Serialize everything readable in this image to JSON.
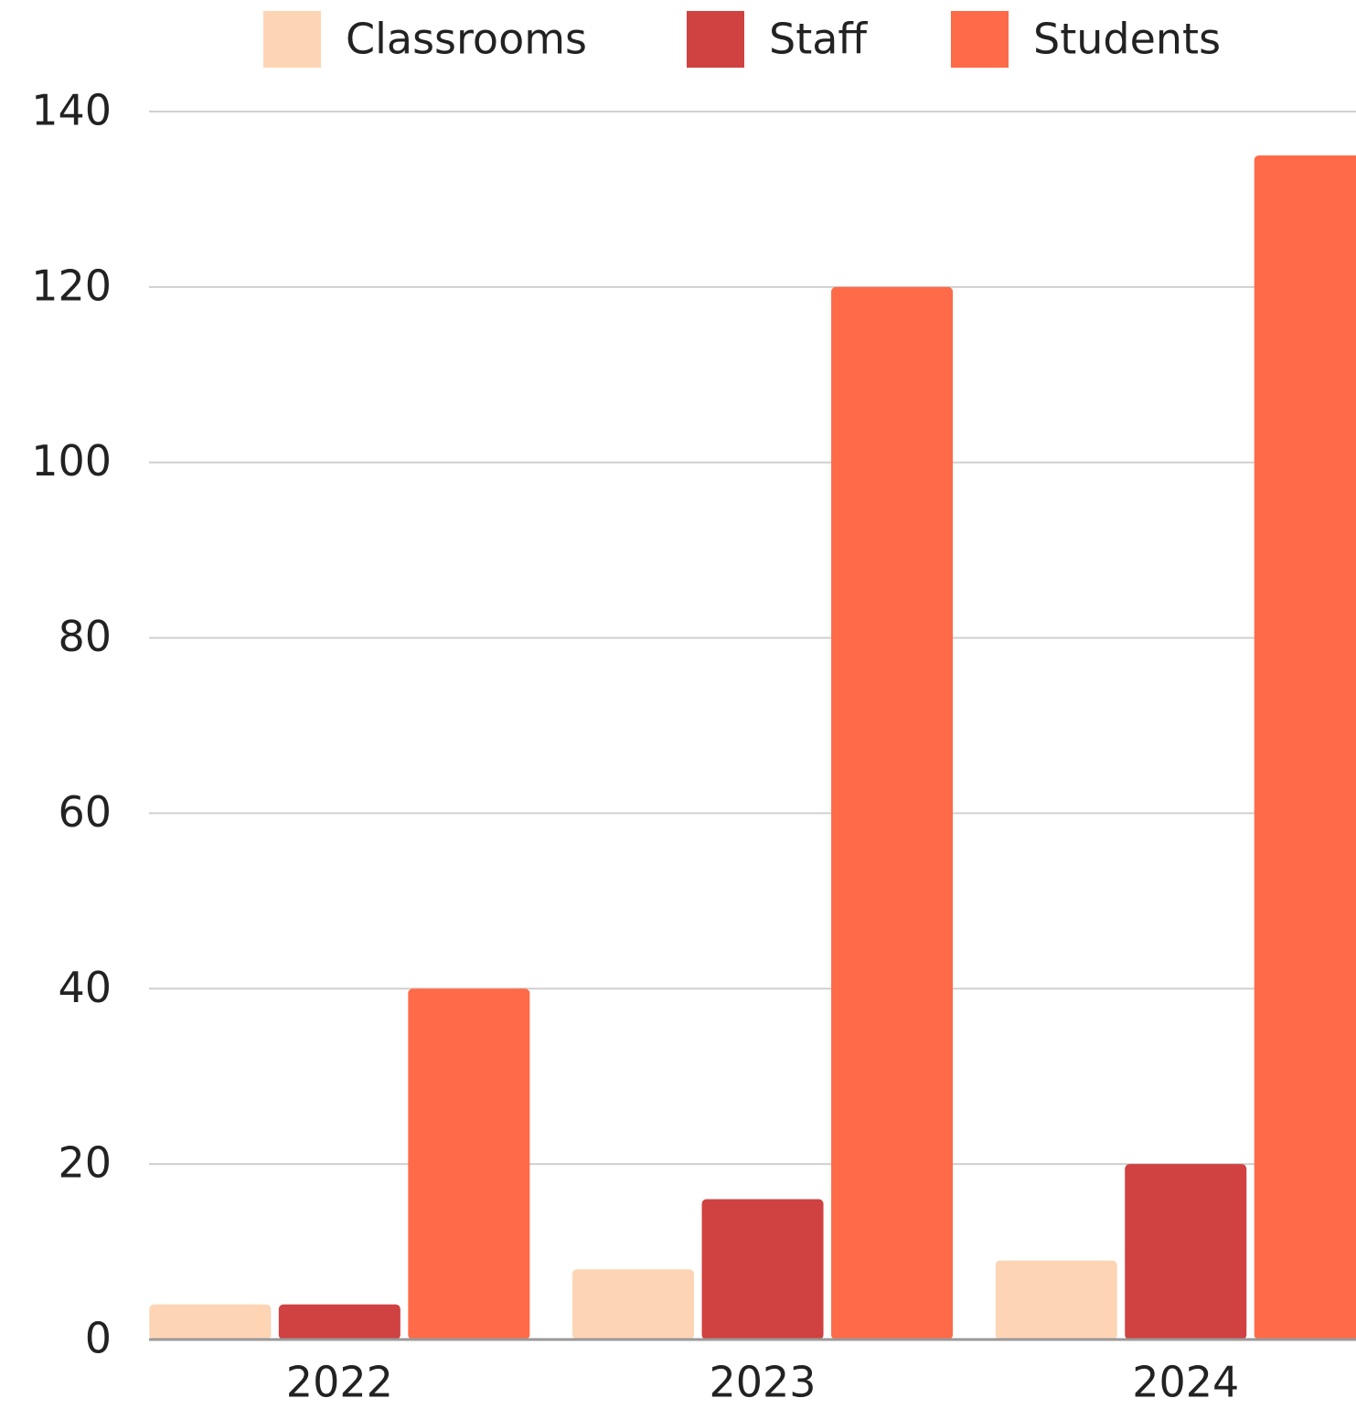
{
  "chart_data": {
    "type": "bar",
    "categories": [
      "2022",
      "2023",
      "2024"
    ],
    "series": [
      {
        "name": "Classrooms",
        "color": "#fdd5b4",
        "values": [
          4,
          8,
          9
        ]
      },
      {
        "name": "Staff",
        "color": "#d04141",
        "values": [
          4,
          16,
          20
        ]
      },
      {
        "name": "Students",
        "color": "#ff6a48",
        "values": [
          40,
          120,
          135
        ]
      }
    ],
    "ylim": [
      0,
      140
    ],
    "yticks": [
      0,
      20,
      40,
      60,
      80,
      100,
      120,
      140
    ],
    "grid": true,
    "legend": "top"
  }
}
